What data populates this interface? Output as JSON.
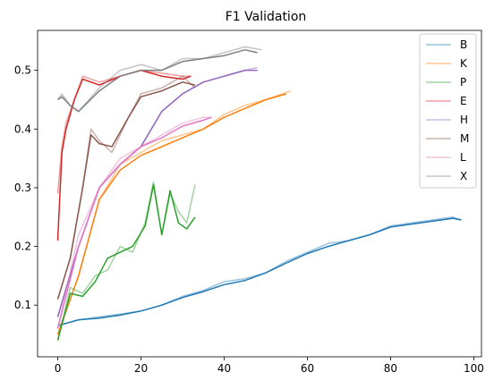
{
  "chart_data": {
    "type": "line",
    "title": "F1 Validation",
    "xlabel": "",
    "ylabel": "",
    "xlim": [
      -4.85,
      101.85
    ],
    "ylim": [
      0.012,
      0.568
    ],
    "xticks": [
      0,
      20,
      40,
      60,
      80,
      100
    ],
    "xtick_labels": [
      "0",
      "20",
      "40",
      "60",
      "80",
      "100"
    ],
    "yticks": [
      0.1,
      0.2,
      0.3,
      0.4,
      0.5
    ],
    "ytick_labels": [
      "0.1",
      "0.2",
      "0.3",
      "0.4",
      "0.5"
    ],
    "grid": false,
    "legend_position": "top-right",
    "raw_alpha": 0.45,
    "series": [
      {
        "name": "B",
        "color": "#1f77b4",
        "raw_x": [
          0,
          5,
          10,
          15,
          20,
          25,
          30,
          35,
          40,
          45,
          50,
          55,
          60,
          65,
          70,
          75,
          80,
          85,
          90,
          95,
          97
        ],
        "raw_y": [
          0.065,
          0.075,
          0.08,
          0.085,
          0.09,
          0.1,
          0.115,
          0.125,
          0.14,
          0.145,
          0.155,
          0.175,
          0.19,
          0.205,
          0.21,
          0.22,
          0.235,
          0.24,
          0.245,
          0.25,
          0.245
        ],
        "smooth_x": [
          0,
          5,
          10,
          15,
          20,
          25,
          30,
          35,
          40,
          45,
          50,
          55,
          60,
          65,
          70,
          75,
          80,
          85,
          90,
          95,
          97
        ],
        "smooth_y": [
          0.065,
          0.075,
          0.078,
          0.083,
          0.09,
          0.1,
          0.113,
          0.123,
          0.135,
          0.142,
          0.155,
          0.172,
          0.188,
          0.2,
          0.21,
          0.22,
          0.233,
          0.238,
          0.243,
          0.248,
          0.245
        ]
      },
      {
        "name": "K",
        "color": "#ff7f0e",
        "raw_x": [
          0,
          5,
          10,
          15,
          20,
          25,
          30,
          35,
          40,
          45,
          50,
          56
        ],
        "raw_y": [
          0.05,
          0.15,
          0.28,
          0.34,
          0.36,
          0.38,
          0.39,
          0.4,
          0.425,
          0.44,
          0.45,
          0.465
        ],
        "smooth_x": [
          0,
          5,
          10,
          15,
          20,
          25,
          30,
          35,
          40,
          45,
          50,
          55
        ],
        "smooth_y": [
          0.05,
          0.15,
          0.28,
          0.33,
          0.355,
          0.37,
          0.385,
          0.4,
          0.42,
          0.435,
          0.45,
          0.46
        ]
      },
      {
        "name": "P",
        "color": "#2ca02c",
        "raw_x": [
          0,
          3,
          6,
          9,
          12,
          15,
          18,
          21,
          23,
          25,
          27,
          29,
          31,
          33
        ],
        "raw_y": [
          0.04,
          0.13,
          0.12,
          0.15,
          0.16,
          0.2,
          0.19,
          0.24,
          0.31,
          0.22,
          0.29,
          0.26,
          0.24,
          0.305
        ],
        "smooth_x": [
          0,
          3,
          6,
          9,
          12,
          15,
          18,
          21,
          23,
          25,
          27,
          29,
          31,
          33
        ],
        "smooth_y": [
          0.04,
          0.12,
          0.115,
          0.14,
          0.18,
          0.19,
          0.2,
          0.235,
          0.305,
          0.22,
          0.295,
          0.24,
          0.23,
          0.25
        ]
      },
      {
        "name": "E",
        "color": "#d62728",
        "raw_x": [
          0,
          1,
          2,
          4,
          6,
          10,
          15,
          20,
          25,
          30,
          32
        ],
        "raw_y": [
          0.29,
          0.37,
          0.41,
          0.45,
          0.49,
          0.48,
          0.49,
          0.5,
          0.495,
          0.49,
          0.49
        ],
        "smooth_x": [
          0,
          1,
          2,
          4,
          6,
          10,
          15,
          20,
          25,
          30,
          32
        ],
        "smooth_y": [
          0.21,
          0.36,
          0.4,
          0.45,
          0.485,
          0.475,
          0.49,
          0.5,
          0.49,
          0.485,
          0.49
        ]
      },
      {
        "name": "H",
        "color": "#9467bd",
        "raw_x": [
          0,
          5,
          10,
          15,
          20,
          25,
          30,
          35,
          40,
          45,
          48
        ],
        "raw_y": [
          0.08,
          0.2,
          0.3,
          0.34,
          0.37,
          0.43,
          0.46,
          0.48,
          0.49,
          0.5,
          0.505
        ],
        "smooth_x": [
          0,
          5,
          10,
          15,
          20,
          25,
          30,
          35,
          40,
          45,
          48
        ],
        "smooth_y": [
          0.08,
          0.2,
          0.3,
          0.34,
          0.37,
          0.43,
          0.46,
          0.48,
          0.49,
          0.5,
          0.5
        ]
      },
      {
        "name": "M",
        "color": "#8c564b",
        "raw_x": [
          0,
          3,
          6,
          8,
          10,
          13,
          17,
          20,
          25,
          30,
          33
        ],
        "raw_y": [
          0.11,
          0.18,
          0.3,
          0.4,
          0.38,
          0.36,
          0.42,
          0.46,
          0.47,
          0.49,
          0.47
        ],
        "smooth_x": [
          0,
          3,
          6,
          8,
          10,
          13,
          17,
          20,
          25,
          30,
          33
        ],
        "smooth_y": [
          0.11,
          0.18,
          0.3,
          0.39,
          0.375,
          0.37,
          0.42,
          0.455,
          0.465,
          0.48,
          0.475
        ]
      },
      {
        "name": "L",
        "color": "#e377c2",
        "raw_x": [
          0,
          5,
          10,
          15,
          20,
          25,
          30,
          35,
          37
        ],
        "raw_y": [
          0.06,
          0.22,
          0.3,
          0.35,
          0.37,
          0.39,
          0.41,
          0.42,
          0.42
        ],
        "smooth_x": [
          0,
          5,
          10,
          15,
          20,
          25,
          30,
          35,
          37
        ],
        "smooth_y": [
          0.06,
          0.2,
          0.3,
          0.34,
          0.37,
          0.385,
          0.405,
          0.415,
          0.42
        ]
      },
      {
        "name": "X",
        "color": "#7f7f7f",
        "raw_x": [
          0,
          1,
          3,
          5,
          10,
          15,
          20,
          25,
          30,
          35,
          40,
          45,
          49
        ],
        "raw_y": [
          0.45,
          0.46,
          0.44,
          0.43,
          0.47,
          0.5,
          0.51,
          0.5,
          0.52,
          0.52,
          0.53,
          0.54,
          0.535
        ],
        "smooth_x": [
          0,
          1,
          3,
          5,
          10,
          15,
          20,
          25,
          30,
          35,
          40,
          45,
          48
        ],
        "smooth_y": [
          0.45,
          0.455,
          0.44,
          0.43,
          0.465,
          0.49,
          0.5,
          0.5,
          0.515,
          0.52,
          0.525,
          0.535,
          0.53
        ]
      }
    ]
  }
}
